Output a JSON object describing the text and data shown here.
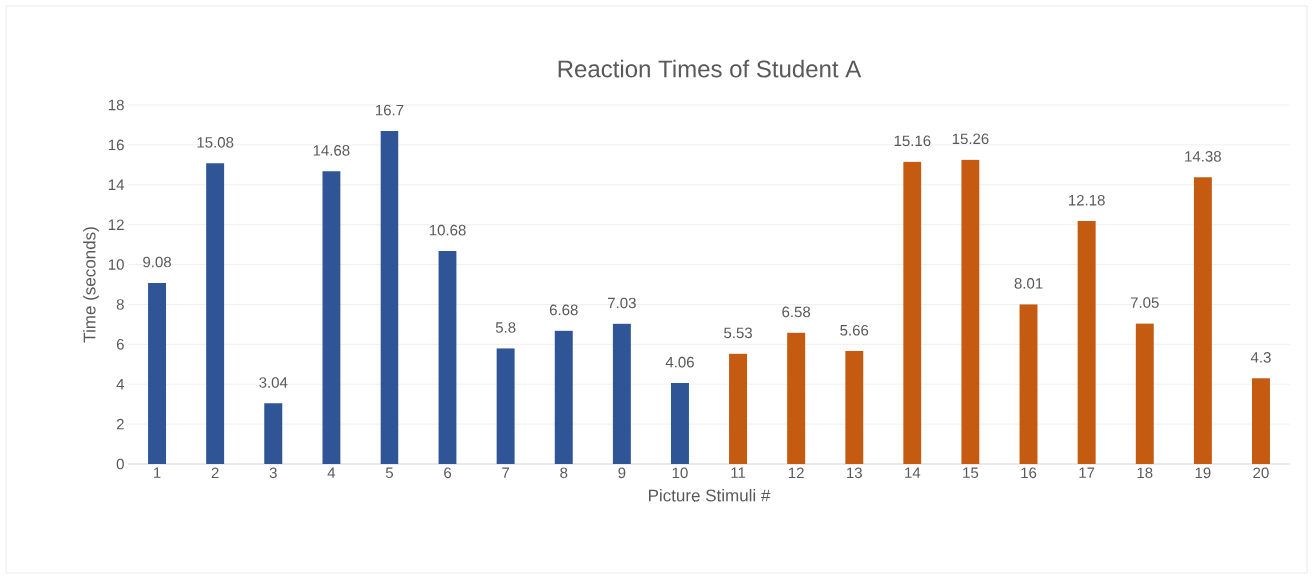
{
  "chart_data": {
    "type": "bar",
    "title": "Reaction Times of Student A",
    "xlabel": "Picture Stimuli #",
    "ylabel": "Time (seconds)",
    "categories": [
      "1",
      "2",
      "3",
      "4",
      "5",
      "6",
      "7",
      "8",
      "9",
      "10",
      "11",
      "12",
      "13",
      "14",
      "15",
      "16",
      "17",
      "18",
      "19",
      "20"
    ],
    "values": [
      9.08,
      15.08,
      3.04,
      14.68,
      16.7,
      10.68,
      5.8,
      6.68,
      7.03,
      4.06,
      5.53,
      6.58,
      5.66,
      15.16,
      15.26,
      8.01,
      12.18,
      7.05,
      14.38,
      4.3
    ],
    "colors": [
      "#2f5597",
      "#2f5597",
      "#2f5597",
      "#2f5597",
      "#2f5597",
      "#2f5597",
      "#2f5597",
      "#2f5597",
      "#2f5597",
      "#2f5597",
      "#c55a11",
      "#c55a11",
      "#c55a11",
      "#c55a11",
      "#c55a11",
      "#c55a11",
      "#c55a11",
      "#c55a11",
      "#c55a11",
      "#c55a11"
    ],
    "ylim": [
      0,
      18
    ],
    "yticks": [
      0,
      2,
      4,
      6,
      8,
      10,
      12,
      14,
      16,
      18
    ],
    "grid": "y",
    "data_labels": true
  }
}
